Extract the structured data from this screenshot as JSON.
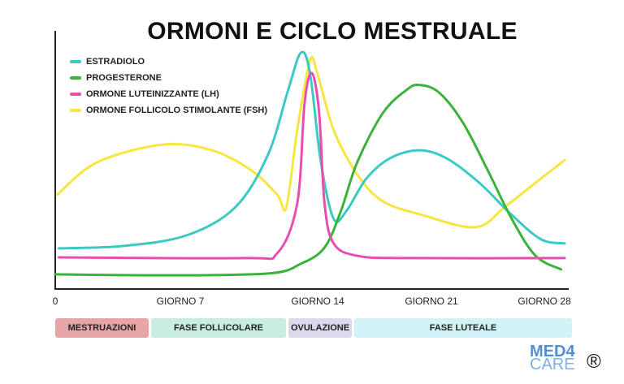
{
  "chart_data": {
    "type": "line",
    "title": "ORMONI E CICLO MESTRUALE",
    "xlim": [
      0,
      28
    ],
    "ylim": [
      0,
      100
    ],
    "x_tick_labels": [
      {
        "day": 0,
        "label": "0"
      },
      {
        "day": 7,
        "label": "GIORNO 7"
      },
      {
        "day": 14,
        "label": "GIORNO 14"
      },
      {
        "day": 21,
        "label": "GIORNO 21"
      },
      {
        "day": 28,
        "label": "GIORNO 28"
      }
    ],
    "legend_position": "top-left",
    "grid": false,
    "series": [
      {
        "name": "ESTRADIOLO",
        "color": "#3cc9c4",
        "x": [
          0.2,
          3.7,
          7.2,
          9.9,
          11.7,
          12.8,
          13.5,
          14,
          14.6,
          15.3,
          16,
          17.1,
          18.4,
          20,
          21.5,
          23.3,
          25.1,
          26.7,
          28
        ],
        "y": [
          15.5,
          16.4,
          20.5,
          31.5,
          52,
          77,
          91.5,
          83.6,
          49,
          27,
          30,
          42.6,
          50.5,
          53.6,
          50.5,
          41,
          28.4,
          19,
          17.4
        ]
      },
      {
        "name": "PROGESTERONE",
        "color": "#3bb33b",
        "x": [
          0,
          5.9,
          11.7,
          13.5,
          14.8,
          15.7,
          16.6,
          18,
          19.3,
          20,
          21.1,
          22.4,
          23.8,
          25.1,
          26.4,
          27.8
        ],
        "y": [
          5.4,
          5,
          5.7,
          9.5,
          15.8,
          30,
          49,
          68,
          77,
          79,
          76,
          64.4,
          45.4,
          26.8,
          12.6,
          7.3
        ]
      },
      {
        "name": "ORMONE LUTEINIZZANTE (LH)",
        "color": "#e64fb0",
        "x": [
          0.2,
          10.4,
          12.2,
          13.3,
          13.7,
          14.1,
          14.5,
          14.8,
          15.3,
          16.6,
          19.3,
          28
        ],
        "y": [
          12,
          11.7,
          13.6,
          33,
          71.6,
          83.6,
          68.5,
          33,
          17.4,
          12.6,
          11.7,
          11.7
        ]
      },
      {
        "name": "ORMONE FOLLICOLO STIMOLANTE (FSH)",
        "color": "#f5e642",
        "x": [
          0.1,
          2.3,
          5.9,
          8.6,
          10.8,
          12.2,
          12.7,
          13.3,
          14,
          14.4,
          15.3,
          16.6,
          18,
          20.2,
          23.1,
          24.7,
          26.4,
          28
        ],
        "y": [
          36.3,
          48.9,
          55.8,
          53.6,
          45.7,
          36.3,
          31.5,
          61.5,
          88.3,
          83.6,
          61.5,
          44.2,
          33.8,
          28.4,
          23.7,
          31.5,
          41,
          49.8
        ]
      }
    ],
    "phases": [
      {
        "label": "MESTRUAZIONI",
        "color": "#e8a5a8"
      },
      {
        "label": "FASE FOLLICOLARE",
        "color": "#c8eee0"
      },
      {
        "label": "OVULAZIONE",
        "color": "#ddd8ee"
      },
      {
        "label": "FASE LUTEALE",
        "color": "#d2f3f6"
      }
    ]
  },
  "logo": {
    "line1": "MED4",
    "line2": "CARE",
    "registered": "®"
  }
}
